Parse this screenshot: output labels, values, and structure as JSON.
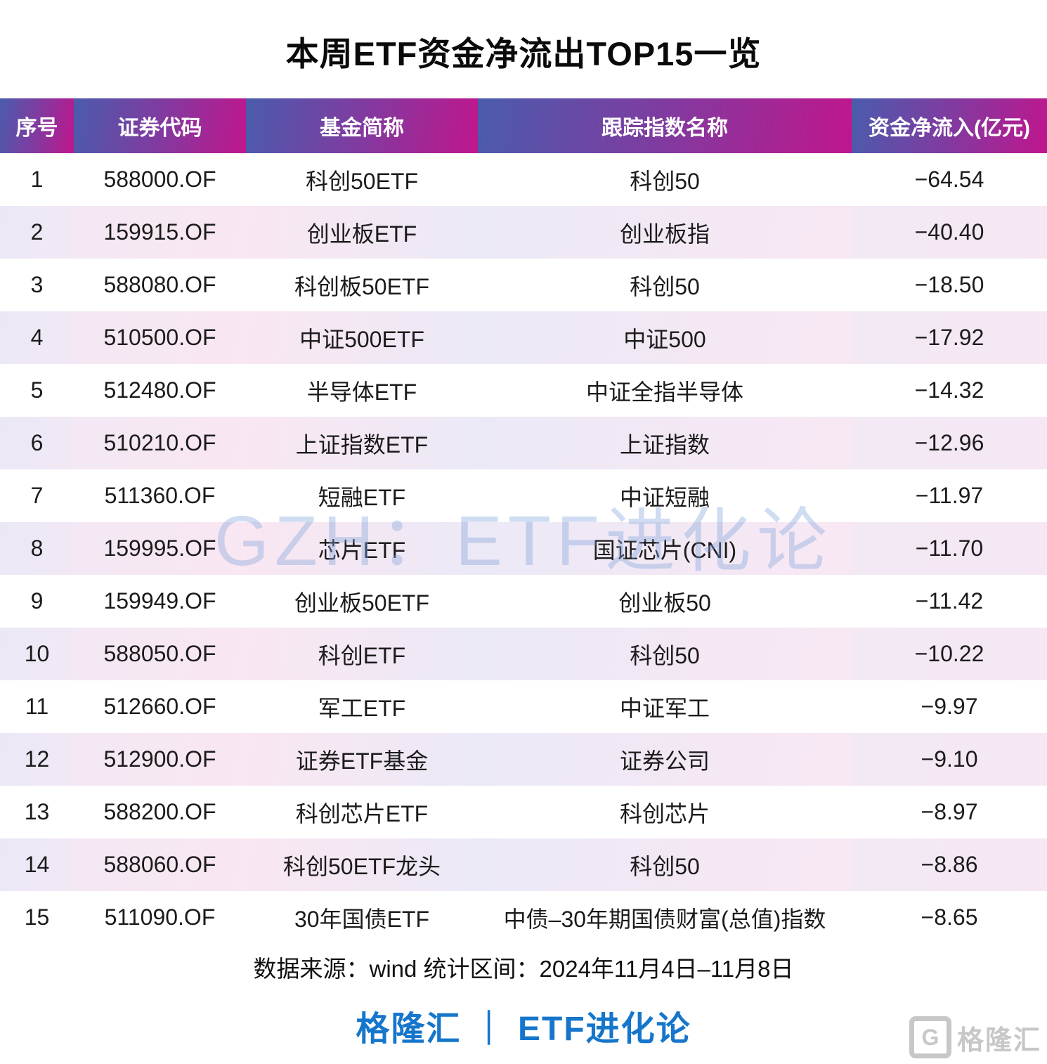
{
  "title": "本周ETF资金净流出TOP15一览",
  "watermark": "GZH：ETF进化论",
  "table": {
    "columns": [
      "序号",
      "证券代码",
      "基金简称",
      "跟踪指数名称",
      "资金净流入(亿元)"
    ],
    "rows": [
      [
        "1",
        "588000.OF",
        "科创50ETF",
        "科创50",
        "−64.54"
      ],
      [
        "2",
        "159915.OF",
        "创业板ETF",
        "创业板指",
        "−40.40"
      ],
      [
        "3",
        "588080.OF",
        "科创板50ETF",
        "科创50",
        "−18.50"
      ],
      [
        "4",
        "510500.OF",
        "中证500ETF",
        "中证500",
        "−17.92"
      ],
      [
        "5",
        "512480.OF",
        "半导体ETF",
        "中证全指半导体",
        "−14.32"
      ],
      [
        "6",
        "510210.OF",
        "上证指数ETF",
        "上证指数",
        "−12.96"
      ],
      [
        "7",
        "511360.OF",
        "短融ETF",
        "中证短融",
        "−11.97"
      ],
      [
        "8",
        "159995.OF",
        "芯片ETF",
        "国证芯片(CNI)",
        "−11.70"
      ],
      [
        "9",
        "159949.OF",
        "创业板50ETF",
        "创业板50",
        "−11.42"
      ],
      [
        "10",
        "588050.OF",
        "科创ETF",
        "科创50",
        "−10.22"
      ],
      [
        "11",
        "512660.OF",
        "军工ETF",
        "中证军工",
        "−9.97"
      ],
      [
        "12",
        "512900.OF",
        "证券ETF基金",
        "证券公司",
        "−9.10"
      ],
      [
        "13",
        "588200.OF",
        "科创芯片ETF",
        "科创芯片",
        "−8.97"
      ],
      [
        "14",
        "588060.OF",
        "科创50ETF龙头",
        "科创50",
        "−8.86"
      ],
      [
        "15",
        "511090.OF",
        "30年国债ETF",
        "中债–30年期国债财富(总值)指数",
        "−8.65"
      ]
    ]
  },
  "footer": {
    "source": "数据来源：wind 统计区间：2024年11月4日–11月8日",
    "brand": "格隆汇 ｜ ETF进化论",
    "logo_g": "G",
    "logo_text": "格隆汇"
  },
  "colors": {
    "header_gradient_start": "#4a5cad",
    "header_gradient_end": "#c0168d",
    "header_text": "#ffffff",
    "stripe_lavender": "#ece9f6",
    "stripe_pink": "#f9e7f2",
    "brand_blue": "#1576cb",
    "watermark_blue": "#b9cdea",
    "logo_gray": "#c7c7c7"
  },
  "chart_data": {
    "type": "table",
    "title": "本周ETF资金净流出TOP15一览",
    "columns": [
      "序号",
      "证券代码",
      "基金简称",
      "跟踪指数名称",
      "资金净流入(亿元)"
    ],
    "rows": [
      {
        "rank": 1,
        "code": "588000.OF",
        "fund_name": "科创50ETF",
        "index_name": "科创50",
        "net_flow_100m_cny": -64.54
      },
      {
        "rank": 2,
        "code": "159915.OF",
        "fund_name": "创业板ETF",
        "index_name": "创业板指",
        "net_flow_100m_cny": -40.4
      },
      {
        "rank": 3,
        "code": "588080.OF",
        "fund_name": "科创板50ETF",
        "index_name": "科创50",
        "net_flow_100m_cny": -18.5
      },
      {
        "rank": 4,
        "code": "510500.OF",
        "fund_name": "中证500ETF",
        "index_name": "中证500",
        "net_flow_100m_cny": -17.92
      },
      {
        "rank": 5,
        "code": "512480.OF",
        "fund_name": "半导体ETF",
        "index_name": "中证全指半导体",
        "net_flow_100m_cny": -14.32
      },
      {
        "rank": 6,
        "code": "510210.OF",
        "fund_name": "上证指数ETF",
        "index_name": "上证指数",
        "net_flow_100m_cny": -12.96
      },
      {
        "rank": 7,
        "code": "511360.OF",
        "fund_name": "短融ETF",
        "index_name": "中证短融",
        "net_flow_100m_cny": -11.97
      },
      {
        "rank": 8,
        "code": "159995.OF",
        "fund_name": "芯片ETF",
        "index_name": "国证芯片(CNI)",
        "net_flow_100m_cny": -11.7
      },
      {
        "rank": 9,
        "code": "159949.OF",
        "fund_name": "创业板50ETF",
        "index_name": "创业板50",
        "net_flow_100m_cny": -11.42
      },
      {
        "rank": 10,
        "code": "588050.OF",
        "fund_name": "科创ETF",
        "index_name": "科创50",
        "net_flow_100m_cny": -10.22
      },
      {
        "rank": 11,
        "code": "512660.OF",
        "fund_name": "军工ETF",
        "index_name": "中证军工",
        "net_flow_100m_cny": -9.97
      },
      {
        "rank": 12,
        "code": "512900.OF",
        "fund_name": "证券ETF基金",
        "index_name": "证券公司",
        "net_flow_100m_cny": -9.1
      },
      {
        "rank": 13,
        "code": "588200.OF",
        "fund_name": "科创芯片ETF",
        "index_name": "科创芯片",
        "net_flow_100m_cny": -8.97
      },
      {
        "rank": 14,
        "code": "588060.OF",
        "fund_name": "科创50ETF龙头",
        "index_name": "科创50",
        "net_flow_100m_cny": -8.86
      },
      {
        "rank": 15,
        "code": "511090.OF",
        "fund_name": "30年国债ETF",
        "index_name": "中债–30年期国债财富(总值)指数",
        "net_flow_100m_cny": -8.65
      }
    ],
    "source_note": "数据来源：wind 统计区间：2024年11月4日–11月8日"
  }
}
